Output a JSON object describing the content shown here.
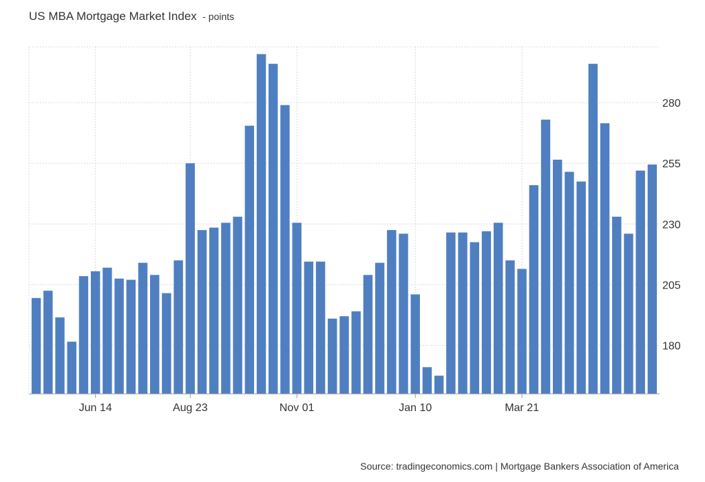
{
  "chart_data": {
    "type": "bar",
    "title": "US MBA Mortgage Market Index",
    "subtitle": "- points",
    "xlabel": "",
    "ylabel": "",
    "x_tick_labels": [
      "Jun 14",
      "Aug 23",
      "Nov 01",
      "Jan 10",
      "Mar 21"
    ],
    "x_tick_bar_index": [
      5,
      13,
      22,
      32,
      41
    ],
    "y_ticks": [
      180,
      205,
      230,
      255,
      280
    ],
    "ylim": [
      160,
      303
    ],
    "grid": true,
    "legend": "none",
    "bar_color": "#4F7FC0",
    "series": [
      {
        "values": [
          199.5,
          202.5,
          191.5,
          181.5,
          208.5,
          210.5,
          212,
          207.5,
          207,
          214,
          209,
          201.5,
          215,
          255,
          227.5,
          228.5,
          230.5,
          233,
          270.5,
          300,
          296,
          279,
          230.5,
          214.5,
          214.5,
          191,
          192,
          194,
          209,
          214,
          227.5,
          226,
          201,
          171,
          167.5,
          226.5,
          226.5,
          222.5,
          227,
          230.5,
          215,
          211.5,
          246,
          273,
          256.5,
          251.5,
          247.5,
          296,
          271.5,
          233,
          226,
          252,
          254.5
        ]
      }
    ]
  },
  "source": "Source: tradingeconomics.com | Mortgage Bankers Association of America"
}
